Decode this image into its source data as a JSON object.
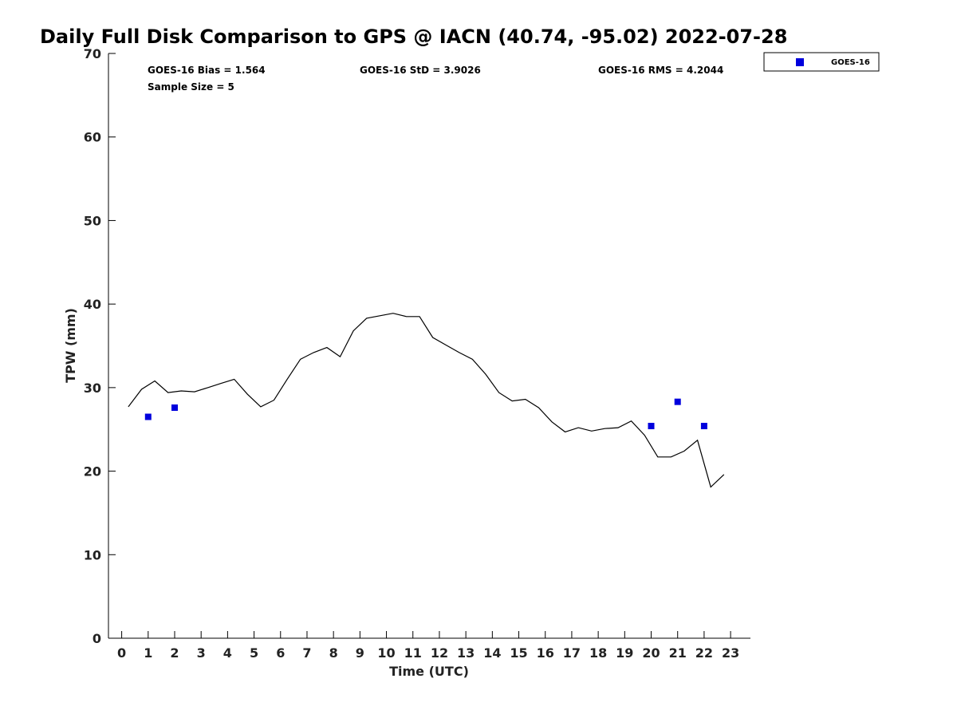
{
  "chart_data": {
    "type": "line",
    "title": "Daily Full Disk Comparison to GPS @ IACN (40.74, -95.02) 2022-07-28",
    "xlabel": "Time (UTC)",
    "ylabel": "TPW (mm)",
    "xlim": [
      -0.5,
      23.75
    ],
    "ylim": [
      0,
      70
    ],
    "xticks": [
      0,
      1,
      2,
      3,
      4,
      5,
      6,
      7,
      8,
      9,
      10,
      11,
      12,
      13,
      14,
      15,
      16,
      17,
      18,
      19,
      20,
      21,
      22,
      23
    ],
    "yticks": [
      0,
      10,
      20,
      30,
      40,
      50,
      60,
      70
    ],
    "grid": false,
    "legend_position": "top-right",
    "stats": {
      "bias": "GOES-16 Bias = 1.564",
      "std": "GOES-16 StD = 3.9026",
      "rms": "GOES-16 RMS = 4.2044",
      "sample_size": "Sample Size = 5"
    },
    "gps_line": {
      "color": "#000000",
      "x": [
        0.25,
        0.75,
        1.25,
        1.75,
        2.25,
        2.75,
        3.25,
        3.75,
        4.25,
        4.75,
        5.25,
        5.75,
        6.25,
        6.75,
        7.25,
        7.75,
        8.25,
        8.75,
        9.25,
        9.75,
        10.25,
        10.75,
        11.25,
        11.75,
        12.25,
        12.75,
        13.25,
        13.75,
        14.25,
        14.75,
        15.25,
        15.75,
        16.25,
        16.75,
        17.25,
        17.75,
        18.25,
        18.75,
        19.25,
        19.75,
        20.25,
        20.75,
        21.25,
        21.75,
        22.25,
        22.75
      ],
      "y": [
        27.7,
        29.8,
        30.8,
        29.4,
        29.6,
        29.5,
        30.0,
        30.5,
        31.0,
        29.2,
        27.7,
        28.5,
        31.0,
        33.4,
        34.2,
        34.8,
        33.7,
        36.8,
        38.3,
        38.6,
        38.9,
        38.5,
        38.5,
        36.0,
        35.1,
        34.2,
        33.4,
        31.6,
        29.4,
        28.4,
        28.6,
        27.6,
        25.9,
        24.7,
        25.2,
        24.8,
        25.1,
        25.2,
        26.0,
        24.3,
        21.7,
        21.7,
        22.4,
        23.7,
        18.1,
        19.6
      ]
    },
    "series": [
      {
        "name": "GOES-16",
        "color": "#0000dd",
        "x": [
          1,
          2,
          20,
          21,
          22
        ],
        "y": [
          26.5,
          27.6,
          25.4,
          28.3,
          25.4
        ]
      }
    ]
  }
}
